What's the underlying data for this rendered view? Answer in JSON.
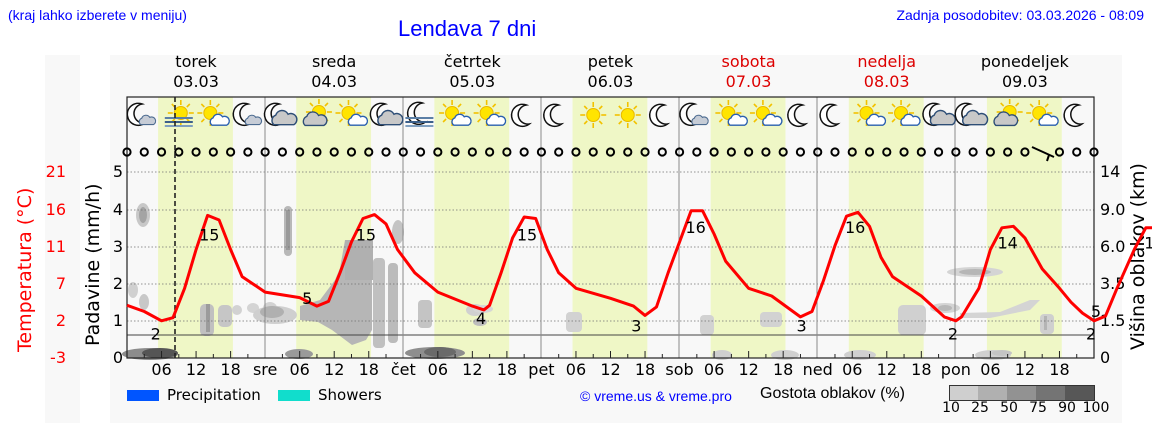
{
  "header": {
    "hint": "(kraj lahko izberete v meniju)",
    "title": "Lendava 7 dni",
    "updated": "Zadnja posodobitev: 03.03.2026 - 08:09"
  },
  "days": [
    {
      "name": "torek",
      "date": "03.03",
      "weekend": false,
      "abbr": ""
    },
    {
      "name": "sreda",
      "date": "04.03",
      "weekend": false,
      "abbr": "sre"
    },
    {
      "name": "četrtek",
      "date": "05.03",
      "weekend": false,
      "abbr": "čet"
    },
    {
      "name": "petek",
      "date": "06.03",
      "weekend": false,
      "abbr": "pet"
    },
    {
      "name": "sobota",
      "date": "07.03",
      "weekend": true,
      "abbr": "sob"
    },
    {
      "name": "nedelja",
      "date": "08.03",
      "weekend": true,
      "abbr": "ned"
    },
    {
      "name": "ponedeljek",
      "date": "09.03",
      "weekend": false,
      "abbr": "pon"
    }
  ],
  "axes": {
    "temp_label": "Temperatura (°C)",
    "precip_label": "Padavine (mm/h)",
    "cloud_label": "Višina oblakov (km)",
    "temp_ticks": [
      "21",
      "16",
      "11",
      "7",
      "2",
      "-3"
    ],
    "precip_ticks": [
      "5",
      "4",
      "3",
      "2",
      "1",
      "0"
    ],
    "cloud_ticks": [
      "14",
      "9.0",
      "6.0",
      "3.5",
      "1.5",
      "0"
    ],
    "hour_ticks": [
      "06",
      "12",
      "18"
    ]
  },
  "weather_icons": [
    "moon-cloud",
    "sun-fog",
    "sun-cloud",
    "moon-cloud",
    "moon-heavy-cloud",
    "sun-heavy-cloud",
    "sun-cloud",
    "moon-heavy-cloud",
    "moon-fog",
    "sun-cloud",
    "sun-cloud",
    "moon",
    "moon",
    "sun",
    "sun",
    "moon",
    "moon-cloud",
    "sun-cloud",
    "sun-cloud",
    "moon",
    "moon",
    "sun-cloud",
    "sun-cloud",
    "moon-heavy-cloud",
    "moon-heavy-cloud",
    "sun-heavy-cloud",
    "sun-cloud",
    "moon"
  ],
  "legend": {
    "precipitation": "Precipitation",
    "precipitation_color": "#0055ff",
    "showers": "Showers",
    "showers_color": "#11ddcc",
    "copyright": "© vreme.us & vreme.pro",
    "cloud_density": "Gostota oblakov (%)",
    "cloud_scale": [
      "10",
      "25",
      "50",
      "75",
      "90",
      "100"
    ],
    "cloud_scale_colors": [
      "#cfcfcf",
      "#b0b0b0",
      "#929292",
      "#747474",
      "#575757"
    ]
  },
  "colors": {
    "title_blue": "#0000ff",
    "weekend_red": "#dd0000",
    "temp_line": "#ff0000",
    "daylight": "#eff7c6",
    "panel_bg": "#f8f8f8"
  },
  "chart_data": {
    "type": "line",
    "title": "Lendava 7 dni",
    "xlabel": "",
    "ylabel": "Temperatura (°C)",
    "ylim": [
      -3,
      21
    ],
    "y2label": "Padavine (mm/h)",
    "y2lim": [
      0,
      5
    ],
    "y3label": "Višina oblakov (km)",
    "y3_ticks": [
      0,
      1.5,
      3.5,
      6.0,
      9.0,
      14
    ],
    "categories": [
      "torek 03.03",
      "sreda 04.03",
      "četrtek 05.03",
      "petek 06.03",
      "sobota 07.03",
      "nedelja 08.03",
      "ponedeljek 09.03"
    ],
    "series": [
      {
        "name": "Temperatura max (°C)",
        "values": [
          15,
          15,
          15,
          16,
          16,
          14,
          14
        ]
      },
      {
        "name": "Temperatura min (°C)",
        "values": [
          2,
          5,
          4,
          3,
          3,
          2,
          2
        ]
      },
      {
        "name": "Padavine (mm/h)",
        "values": [
          0,
          0,
          0,
          0,
          0,
          0,
          0
        ]
      }
    ],
    "temperature_hourly": [
      [
        0,
        3.8
      ],
      [
        3,
        3.0
      ],
      [
        6,
        1.8
      ],
      [
        8,
        2.2
      ],
      [
        10,
        6
      ],
      [
        12,
        11
      ],
      [
        14,
        15.4
      ],
      [
        16,
        14.8
      ],
      [
        18,
        11
      ],
      [
        20,
        7.5
      ],
      [
        24,
        5.5
      ],
      [
        30,
        4.8
      ],
      [
        33,
        3.7
      ],
      [
        35,
        4.3
      ],
      [
        37,
        8
      ],
      [
        39,
        12
      ],
      [
        41,
        15.0
      ],
      [
        43,
        15.5
      ],
      [
        45,
        14.3
      ],
      [
        47,
        11
      ],
      [
        50,
        8
      ],
      [
        54,
        5.5
      ],
      [
        60,
        3.7
      ],
      [
        62,
        3.2
      ],
      [
        63,
        3.8
      ],
      [
        65,
        8
      ],
      [
        67,
        12.5
      ],
      [
        69,
        15.2
      ],
      [
        71,
        15
      ],
      [
        73,
        11
      ],
      [
        75,
        8
      ],
      [
        78,
        6
      ],
      [
        84,
        4.7
      ],
      [
        88,
        3.7
      ],
      [
        90,
        2.5
      ],
      [
        92,
        3.6
      ],
      [
        94,
        8
      ],
      [
        96,
        12
      ],
      [
        98,
        16
      ],
      [
        100,
        16
      ],
      [
        102,
        13
      ],
      [
        104,
        9.5
      ],
      [
        108,
        6
      ],
      [
        112,
        5
      ],
      [
        117,
        2.3
      ],
      [
        119,
        3.0
      ],
      [
        121,
        7
      ],
      [
        123,
        11.5
      ],
      [
        125,
        15.3
      ],
      [
        127,
        15.8
      ],
      [
        129,
        14
      ],
      [
        131,
        10
      ],
      [
        133,
        7.5
      ],
      [
        138,
        5
      ],
      [
        142,
        2.3
      ],
      [
        144,
        1.8
      ],
      [
        145,
        2.3
      ],
      [
        148,
        6
      ],
      [
        150,
        11
      ],
      [
        152,
        13.8
      ],
      [
        154,
        14.0
      ],
      [
        156,
        12.5
      ],
      [
        159,
        8.5
      ],
      [
        162,
        6
      ],
      [
        164,
        4.2
      ],
      [
        166,
        2.8
      ],
      [
        168,
        1.8
      ],
      [
        170,
        2.4
      ],
      [
        172,
        6
      ],
      [
        175,
        11
      ],
      [
        177,
        13.8
      ],
      [
        179,
        13.8
      ],
      [
        181,
        11.5
      ],
      [
        183,
        9
      ],
      [
        185,
        7.2
      ],
      [
        187,
        6.2
      ]
    ],
    "annotations": [
      "current time marker at 03.03 ~09:00"
    ],
    "grid": true,
    "legend_position": "bottom"
  }
}
